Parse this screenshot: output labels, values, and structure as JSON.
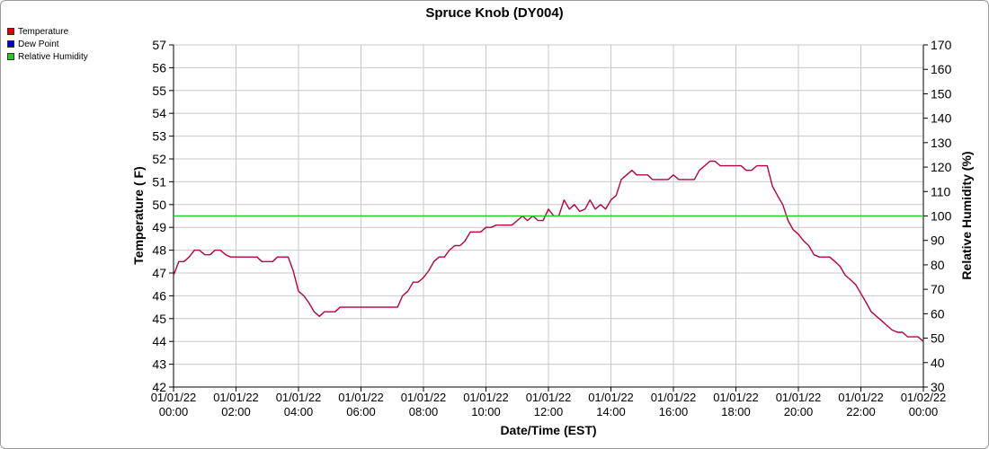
{
  "chart_data": {
    "type": "line",
    "title": "Spruce Knob (DY004)",
    "xlabel": "Date/Time (EST)",
    "ylabel": "Temperature ( F)",
    "y2label": "Relative Humidity (%)",
    "ylim": [
      42,
      57
    ],
    "y2lim": [
      30,
      170
    ],
    "xlim_hours": [
      0,
      24
    ],
    "yticks": [
      "42",
      "43",
      "44",
      "45",
      "46",
      "47",
      "48",
      "49",
      "50",
      "51",
      "52",
      "53",
      "54",
      "55",
      "56",
      "57"
    ],
    "y2ticks": [
      "30",
      "40",
      "50",
      "60",
      "70",
      "80",
      "90",
      "100",
      "110",
      "120",
      "130",
      "140",
      "150",
      "160",
      "170"
    ],
    "xticks": [
      {
        "date": "01/01/22",
        "time": "00:00"
      },
      {
        "date": "01/01/22",
        "time": "02:00"
      },
      {
        "date": "01/01/22",
        "time": "04:00"
      },
      {
        "date": "01/01/22",
        "time": "06:00"
      },
      {
        "date": "01/01/22",
        "time": "08:00"
      },
      {
        "date": "01/01/22",
        "time": "10:00"
      },
      {
        "date": "01/01/22",
        "time": "12:00"
      },
      {
        "date": "01/01/22",
        "time": "14:00"
      },
      {
        "date": "01/01/22",
        "time": "16:00"
      },
      {
        "date": "01/01/22",
        "time": "18:00"
      },
      {
        "date": "01/01/22",
        "time": "20:00"
      },
      {
        "date": "01/01/22",
        "time": "22:00"
      },
      {
        "date": "01/02/22",
        "time": "00:00"
      }
    ],
    "grid": true,
    "legend_position": "top-left",
    "series": [
      {
        "name": "Temperature",
        "color": "#cc0000",
        "axis": "left",
        "x": [
          0,
          0.17,
          0.33,
          0.5,
          0.67,
          0.83,
          1,
          1.17,
          1.33,
          1.5,
          1.67,
          1.83,
          2,
          2.17,
          2.33,
          2.5,
          2.67,
          2.83,
          3,
          3.17,
          3.33,
          3.5,
          3.67,
          3.83,
          4,
          4.17,
          4.33,
          4.5,
          4.67,
          4.83,
          5,
          5.17,
          5.33,
          5.5,
          5.67,
          5.83,
          6,
          6.17,
          6.33,
          6.5,
          6.67,
          6.83,
          7,
          7.17,
          7.33,
          7.5,
          7.67,
          7.83,
          8,
          8.17,
          8.33,
          8.5,
          8.67,
          8.83,
          9,
          9.17,
          9.33,
          9.5,
          9.67,
          9.83,
          10,
          10.17,
          10.33,
          10.5,
          10.67,
          10.83,
          11,
          11.17,
          11.33,
          11.5,
          11.67,
          11.83,
          12,
          12.17,
          12.33,
          12.5,
          12.67,
          12.83,
          13,
          13.17,
          13.33,
          13.5,
          13.67,
          13.83,
          14,
          14.17,
          14.33,
          14.5,
          14.67,
          14.83,
          15,
          15.17,
          15.33,
          15.5,
          15.67,
          15.83,
          16,
          16.17,
          16.33,
          16.5,
          16.67,
          16.83,
          17,
          17.17,
          17.33,
          17.5,
          17.67,
          17.83,
          18,
          18.17,
          18.33,
          18.5,
          18.67,
          18.83,
          19,
          19.17,
          19.33,
          19.5,
          19.67,
          19.83,
          20,
          20.17,
          20.33,
          20.5,
          20.67,
          20.83,
          21,
          21.17,
          21.33,
          21.5,
          21.67,
          21.83,
          22,
          22.17,
          22.33,
          22.5,
          22.67,
          22.83,
          23,
          23.17,
          23.33,
          23.5,
          23.67,
          23.83,
          24
        ],
        "values": [
          46.9,
          47.5,
          47.5,
          47.7,
          48.0,
          48.0,
          47.8,
          47.8,
          48.0,
          48.0,
          47.8,
          47.7,
          47.7,
          47.7,
          47.7,
          47.7,
          47.7,
          47.5,
          47.5,
          47.5,
          47.7,
          47.7,
          47.7,
          47.1,
          46.2,
          46.0,
          45.7,
          45.3,
          45.1,
          45.3,
          45.3,
          45.3,
          45.5,
          45.5,
          45.5,
          45.5,
          45.5,
          45.5,
          45.5,
          45.5,
          45.5,
          45.5,
          45.5,
          45.5,
          46.0,
          46.2,
          46.6,
          46.6,
          46.8,
          47.1,
          47.5,
          47.7,
          47.7,
          48.0,
          48.2,
          48.2,
          48.4,
          48.8,
          48.8,
          48.8,
          49.0,
          49.0,
          49.1,
          49.1,
          49.1,
          49.1,
          49.3,
          49.5,
          49.3,
          49.5,
          49.3,
          49.3,
          49.8,
          49.5,
          49.5,
          50.2,
          49.8,
          50.0,
          49.7,
          49.8,
          50.2,
          49.8,
          50.0,
          49.8,
          50.2,
          50.4,
          51.1,
          51.3,
          51.5,
          51.3,
          51.3,
          51.3,
          51.1,
          51.1,
          51.1,
          51.1,
          51.3,
          51.1,
          51.1,
          51.1,
          51.1,
          51.5,
          51.7,
          51.9,
          51.9,
          51.7,
          51.7,
          51.7,
          51.7,
          51.7,
          51.5,
          51.5,
          51.7,
          51.7,
          51.7,
          50.8,
          50.4,
          50.0,
          49.3,
          48.9,
          48.7,
          48.4,
          48.2,
          47.8,
          47.7,
          47.7,
          47.7,
          47.5,
          47.3,
          46.9,
          46.7,
          46.5,
          46.1,
          45.7,
          45.3,
          45.1,
          44.9,
          44.7,
          44.5,
          44.4,
          44.4,
          44.2,
          44.2,
          44.2,
          44.0
        ]
      },
      {
        "name": "Dew Point",
        "color": "#0000cc",
        "axis": "left",
        "x": [],
        "values": []
      },
      {
        "name": "Relative Humidity",
        "color": "#22cc22",
        "axis": "right",
        "x": [
          0,
          24
        ],
        "values": [
          100,
          100
        ]
      }
    ]
  }
}
